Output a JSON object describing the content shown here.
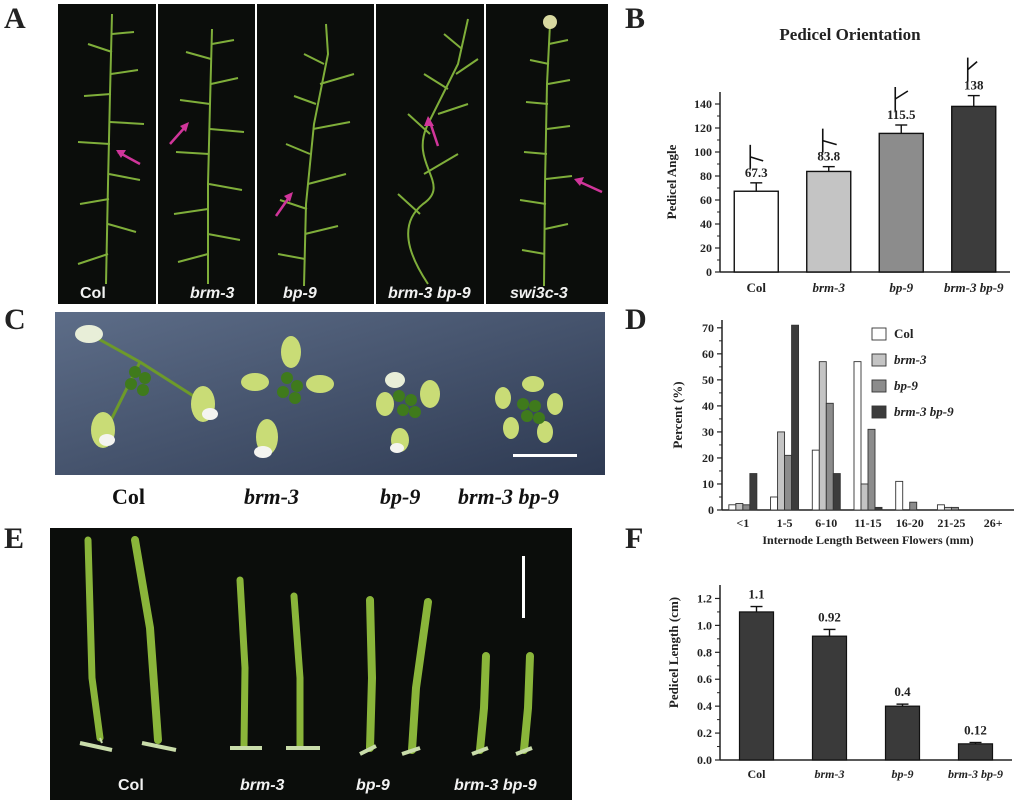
{
  "panels": {
    "A": {
      "label": "A",
      "strips": [
        {
          "label": "Col",
          "italic": false
        },
        {
          "label": "brm-3",
          "italic": true
        },
        {
          "label": "bp-9",
          "italic": true
        },
        {
          "label": "brm-3 bp-9",
          "italic": true
        },
        {
          "label": "swi3c-3",
          "italic": true
        }
      ]
    },
    "B": {
      "label": "B"
    },
    "C": {
      "label": "C",
      "genotypes": [
        {
          "label": "Col",
          "italic": false
        },
        {
          "label": "brm-3",
          "italic": true
        },
        {
          "label": "bp-9",
          "italic": true
        },
        {
          "label": "brm-3 bp-9",
          "italic": true
        }
      ]
    },
    "D": {
      "label": "D"
    },
    "E": {
      "label": "E",
      "genotypes": [
        {
          "label": "Col",
          "italic": false
        },
        {
          "label": "brm-3",
          "italic": true
        },
        {
          "label": "bp-9",
          "italic": true
        },
        {
          "label": "brm-3 bp-9",
          "italic": true
        }
      ]
    },
    "F": {
      "label": "F"
    }
  },
  "colors": {
    "col_bar": "#ffffff",
    "brm3_bar": "#c4c4c4",
    "bp9_bar": "#8c8c8c",
    "double_bar": "#3c3c3c",
    "stem_green": "#7fae3a",
    "arrow_magenta": "#d0359a"
  },
  "chart_data": [
    {
      "id": "B",
      "type": "bar",
      "title": "Pedicel Orientation",
      "xlabel": "",
      "ylabel": "Pedicel Angle",
      "categories": [
        "Col",
        "brm-3",
        "bp-9",
        "brm-3 bp-9"
      ],
      "values": [
        67.3,
        83.8,
        115.5,
        138
      ],
      "value_labels": [
        "67.3",
        "83.8",
        "115.5",
        "138"
      ],
      "errors": [
        7,
        4,
        7,
        9
      ],
      "ylim": [
        0,
        150
      ],
      "yticks": [
        0,
        20,
        40,
        60,
        80,
        100,
        120,
        140
      ],
      "grid": false
    },
    {
      "id": "D",
      "type": "bar",
      "title": "",
      "xlabel": "Internode Length Between Flowers (mm)",
      "ylabel": "Percent (%)",
      "categories": [
        "<1",
        "1-5",
        "6-10",
        "11-15",
        "16-20",
        "21-25",
        "26+"
      ],
      "series": [
        {
          "name": "Col",
          "values": [
            2,
            5,
            23,
            57,
            11,
            2,
            0
          ]
        },
        {
          "name": "brm-3",
          "values": [
            2.5,
            30,
            57,
            10,
            0,
            1,
            0
          ]
        },
        {
          "name": "bp-9",
          "values": [
            2,
            21,
            41,
            31,
            3,
            1,
            0
          ]
        },
        {
          "name": "brm-3 bp-9",
          "values": [
            14,
            71,
            14,
            1,
            0,
            0,
            0
          ]
        }
      ],
      "ylim": [
        0,
        73
      ],
      "yticks": [
        0,
        10,
        20,
        30,
        40,
        50,
        60,
        70
      ],
      "legend": "top-right",
      "grid": false
    },
    {
      "id": "F",
      "type": "bar",
      "title": "",
      "xlabel": "",
      "ylabel": "Pedicel Length (cm)",
      "categories": [
        "Col",
        "brm-3",
        "bp-9",
        "brm-3 bp-9"
      ],
      "values": [
        1.1,
        0.92,
        0.4,
        0.12
      ],
      "value_labels": [
        "1.1",
        "0.92",
        "0.4",
        "0.12"
      ],
      "errors": [
        0.04,
        0.05,
        0.015,
        0.01
      ],
      "ylim": [
        0,
        1.3
      ],
      "yticks": [
        0.0,
        0.2,
        0.4,
        0.6,
        0.8,
        1.0,
        1.2
      ],
      "ytick_labels": [
        "0.0",
        "0.2",
        "0.4",
        "0.6",
        "0.8",
        "1.0",
        "1.2"
      ],
      "grid": false
    }
  ]
}
